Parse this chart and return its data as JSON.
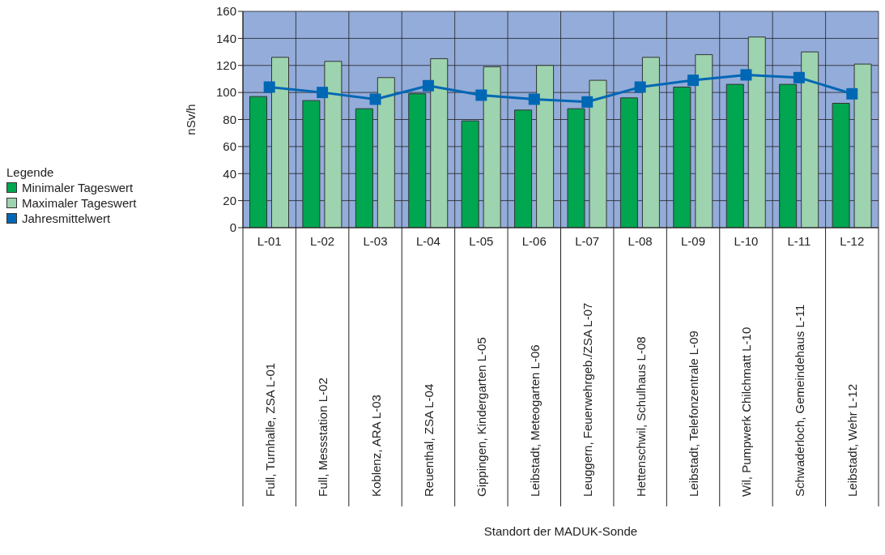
{
  "chart_data": {
    "type": "bar",
    "ylabel": "nSv/h",
    "legend_title": "Legende",
    "categories": [
      "L-01",
      "L-02",
      "L-03",
      "L-04",
      "L-05",
      "L-06",
      "L-07",
      "L-08",
      "L-09",
      "L-10",
      "L-11",
      "L-12"
    ],
    "annotations": [
      "Full, Turnhalle, ZSA L-01",
      "Full, Messstation L-02",
      "Koblenz, ARA L-03",
      "Reuenthal, ZSA L-04",
      "Gippingen, Kindergarten L-05",
      "Leibstadt, Meteogarten L-06",
      "Leuggern, Feuerwehrgeb./ZSA L-07",
      "Hettenschwil, Schulhaus L-08",
      "Leibstadt, Telefonzentrale L-09",
      "Wil, Pumpwerk Chilchmatt L-10",
      "Schwaderloch, Gemeindehaus L-11",
      "Leibstadt, Wehr L-12",
      "Standort der MADUK-Sonde"
    ],
    "series": [
      {
        "name": "Minimaler Tageswert",
        "color": "#00a650",
        "values": [
          97,
          94,
          88,
          99,
          79,
          87,
          88,
          96,
          104,
          106,
          106,
          92
        ]
      },
      {
        "name": "Maximaler Tageswert",
        "color": "#9dd3ae",
        "values": [
          126,
          123,
          111,
          125,
          119,
          120,
          109,
          126,
          128,
          141,
          130,
          121
        ]
      },
      {
        "name": "Jahresmittelwert",
        "type": "line",
        "color": "#0067b4",
        "values": [
          104,
          100,
          95,
          105,
          98,
          95,
          93,
          104,
          109,
          113,
          111,
          99
        ]
      }
    ],
    "ylim": [
      0,
      160
    ],
    "yticks": [
      0,
      20,
      40,
      60,
      80,
      100,
      120,
      140,
      160
    ],
    "grid": true,
    "legend": "left",
    "marker": "square"
  }
}
